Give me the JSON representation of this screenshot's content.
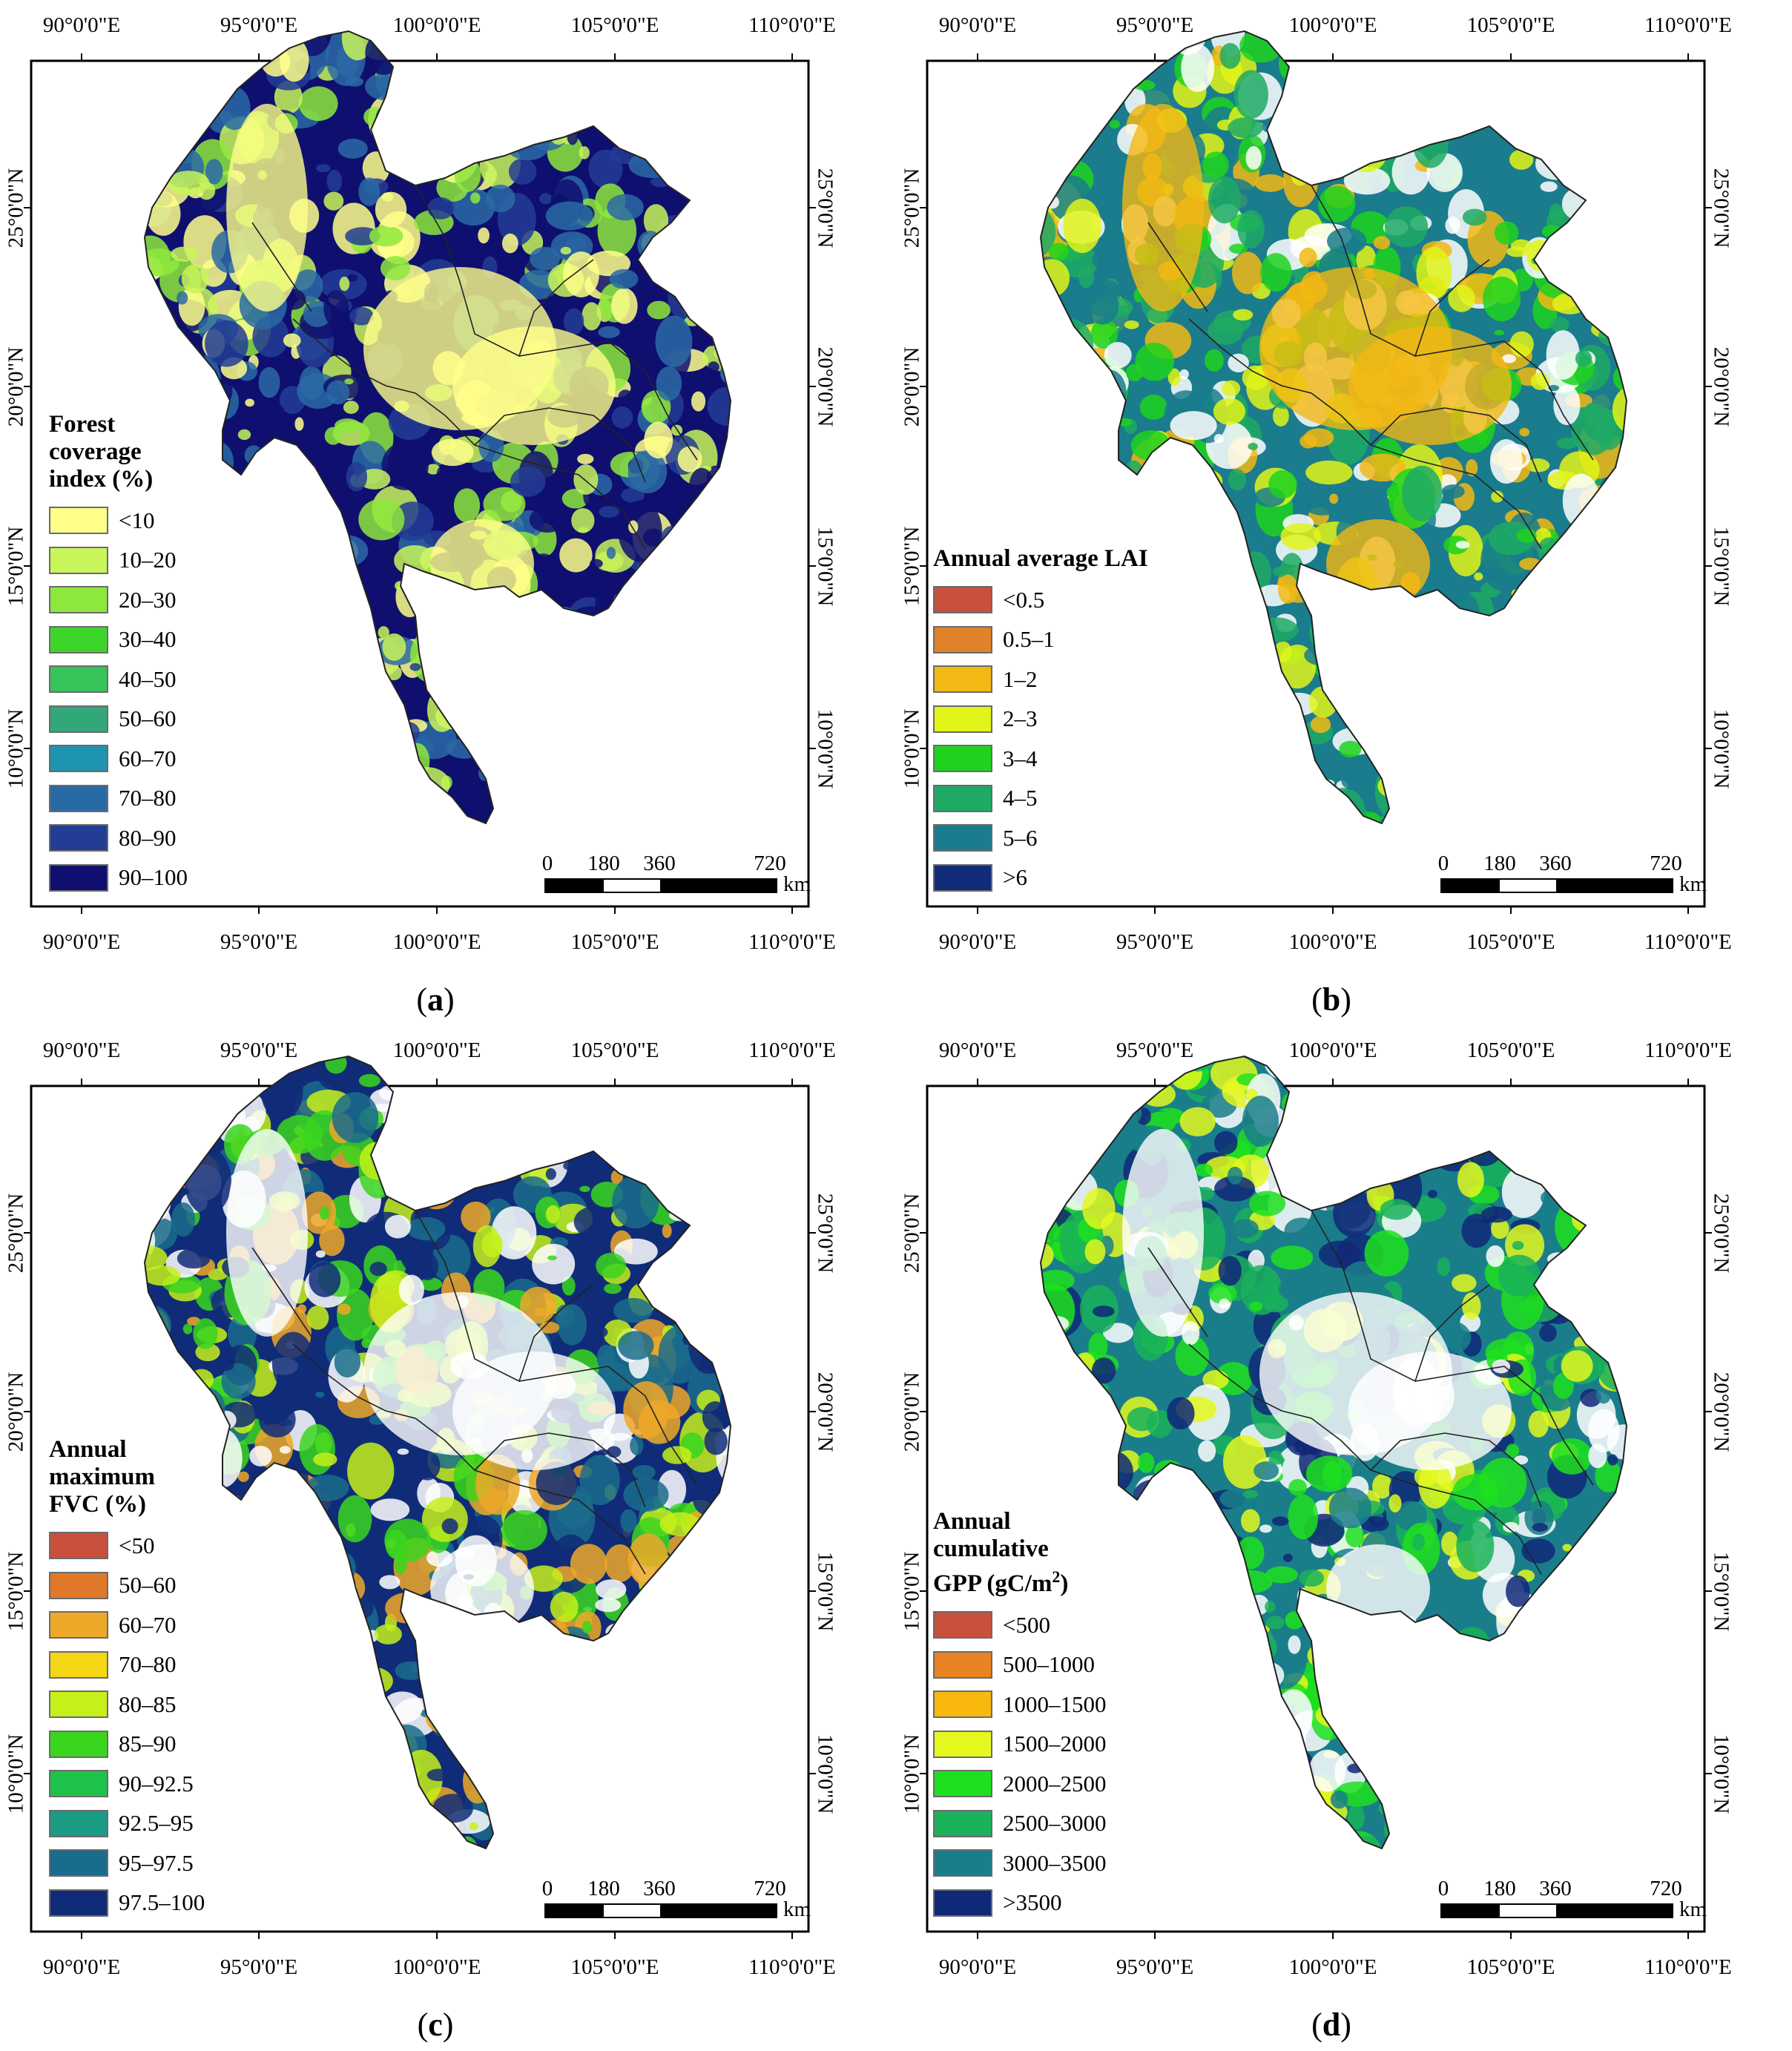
{
  "axes": {
    "lon_labels": [
      "90°0'0\"E",
      "95°0'0\"E",
      "100°0'0\"E",
      "105°0'0\"E",
      "110°0'0\"E"
    ],
    "lat_labels": [
      "10°0'0\"N",
      "15°0'0\"N",
      "20°0'0\"N",
      "25°0'0\"N"
    ]
  },
  "scalebar": {
    "ticks": [
      "0",
      "180",
      "360",
      "720"
    ],
    "unit": "km"
  },
  "panels": [
    {
      "caption": "a",
      "legend_title": [
        "Forest",
        "coverage",
        "index (%)"
      ],
      "legend": [
        {
          "label": "<10",
          "color": "#ffff8a"
        },
        {
          "label": "10–20",
          "color": "#c8f55a"
        },
        {
          "label": "20–30",
          "color": "#8ee83c"
        },
        {
          "label": "30–40",
          "color": "#3cd62a"
        },
        {
          "label": "40–50",
          "color": "#36c45a"
        },
        {
          "label": "50–60",
          "color": "#32a878"
        },
        {
          "label": "60–70",
          "color": "#1f94b0"
        },
        {
          "label": "70–80",
          "color": "#2a6aa4"
        },
        {
          "label": "80–90",
          "color": "#233c94"
        },
        {
          "label": "90–100",
          "color": "#0f0f70"
        }
      ],
      "map_palette": [
        "#0f0f70",
        "#233c94",
        "#2a6aa4",
        "#c8f55a",
        "#ffff8a",
        "#8ee83c"
      ]
    },
    {
      "caption": "b",
      "legend_title": [
        "Annual average LAI"
      ],
      "legend": [
        {
          "label": "<0.5",
          "color": "#c8503c"
        },
        {
          "label": "0.5–1",
          "color": "#e0822a"
        },
        {
          "label": "1–2",
          "color": "#f2b814"
        },
        {
          "label": "2–3",
          "color": "#e2f418"
        },
        {
          "label": "3–4",
          "color": "#1ed21e"
        },
        {
          "label": "4–5",
          "color": "#1eaa64"
        },
        {
          "label": "5–6",
          "color": "#1a7c8c"
        },
        {
          "label": ">6",
          "color": "#102c78"
        }
      ],
      "map_palette": [
        "#1a7c8c",
        "#1eaa64",
        "#1ed21e",
        "#e2f418",
        "#f2b814",
        "#ffffff"
      ]
    },
    {
      "caption": "c",
      "legend_title": [
        "Annual",
        "maximum",
        "FVC (%)"
      ],
      "legend": [
        {
          "label": "<50",
          "color": "#c8503c"
        },
        {
          "label": "50–60",
          "color": "#e0782a"
        },
        {
          "label": "60–70",
          "color": "#eea828"
        },
        {
          "label": "70–80",
          "color": "#f4d614"
        },
        {
          "label": "80–85",
          "color": "#c6f01a"
        },
        {
          "label": "85–90",
          "color": "#3ad61e"
        },
        {
          "label": "90–92.5",
          "color": "#1ec24a"
        },
        {
          "label": "92.5–95",
          "color": "#1a9c84"
        },
        {
          "label": "95–97.5",
          "color": "#1a6c8c"
        },
        {
          "label": "97.5–100",
          "color": "#102c78"
        }
      ],
      "map_palette": [
        "#102c78",
        "#1a6c8c",
        "#3ad61e",
        "#c6f01a",
        "#ffffff",
        "#eea828"
      ]
    },
    {
      "caption": "d",
      "legend_title": [
        "Annual",
        "cumulative",
        "GPP (gC/m",
        "2",
        ")"
      ],
      "legend": [
        {
          "label": "<500",
          "color": "#c8503c"
        },
        {
          "label": "500–1000",
          "color": "#e88222"
        },
        {
          "label": "1000–1500",
          "color": "#f8b80e"
        },
        {
          "label": "1500–2000",
          "color": "#e4f81e"
        },
        {
          "label": "2000–2500",
          "color": "#1ee01e"
        },
        {
          "label": "2500–3000",
          "color": "#1ab25a"
        },
        {
          "label": "3000–3500",
          "color": "#1a7e8a"
        },
        {
          "label": ">3500",
          "color": "#102878"
        }
      ],
      "map_palette": [
        "#1a7e8a",
        "#102878",
        "#1ab25a",
        "#e4f81e",
        "#ffffff",
        "#1ee01e"
      ]
    }
  ]
}
